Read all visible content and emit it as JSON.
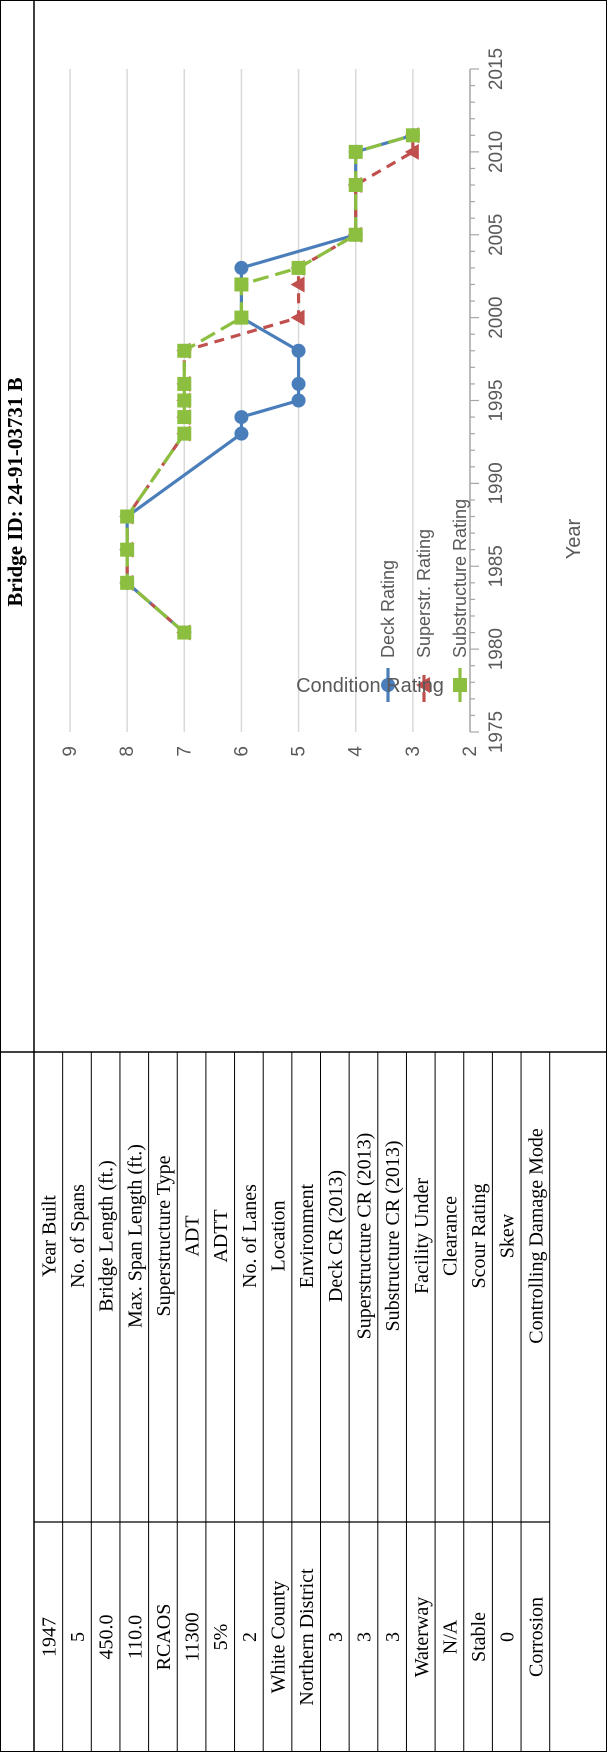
{
  "table": {
    "rows": [
      {
        "label": "Year Built",
        "value": "1947"
      },
      {
        "label": "No. of Spans",
        "value": "5"
      },
      {
        "label": "Bridge Length (ft.)",
        "value": "450.0"
      },
      {
        "label": "Max. Span Length (ft.)",
        "value": "110.0"
      },
      {
        "label": "Superstructure Type",
        "value": "RCAOS"
      },
      {
        "label": "ADT",
        "value": "11300"
      },
      {
        "label": "ADTT",
        "value": "5%"
      },
      {
        "label": "No. of Lanes",
        "value": "2"
      },
      {
        "label": "Location",
        "value": "White County"
      },
      {
        "label": "Environment",
        "value": "Northern District"
      },
      {
        "label": "Deck CR (2013)",
        "value": "3"
      },
      {
        "label": "Superstructure CR (2013)",
        "value": "3"
      },
      {
        "label": "Substructure CR (2013)",
        "value": "3"
      },
      {
        "label": "Facility Under",
        "value": "Waterway"
      },
      {
        "label": "Clearance",
        "value": "N/A"
      },
      {
        "label": "Scour Rating",
        "value": "Stable"
      },
      {
        "label": "Skew",
        "value": "0"
      },
      {
        "label": "Controlling Damage Mode",
        "value": "Corrosion"
      }
    ]
  },
  "chart_data": {
    "type": "line",
    "title": "Bridge ID: 24-91-03731 B",
    "xlabel": "Year",
    "ylabel": "Condition Rating",
    "xlim": [
      1975,
      2015
    ],
    "ylim": [
      2,
      9
    ],
    "x_ticks": [
      1975,
      1980,
      1985,
      1990,
      1995,
      2000,
      2005,
      2010,
      2015
    ],
    "y_ticks": [
      2,
      3,
      4,
      5,
      6,
      7,
      8,
      9
    ],
    "grid": true,
    "legend_position": "lower-left",
    "series": [
      {
        "name": "Deck Rating",
        "color": "#4a7ebb",
        "marker": "circle",
        "line": "solid",
        "points": [
          [
            1981,
            7
          ],
          [
            1984,
            8
          ],
          [
            1986,
            8
          ],
          [
            1988,
            8
          ],
          [
            1993,
            6
          ],
          [
            1994,
            6
          ],
          [
            1995,
            5
          ],
          [
            1996,
            5
          ],
          [
            1998,
            5
          ],
          [
            2000,
            6
          ],
          [
            2002,
            6
          ],
          [
            2003,
            6
          ],
          [
            2005,
            4
          ],
          [
            2008,
            4
          ],
          [
            2010,
            4
          ],
          [
            2011,
            3
          ]
        ]
      },
      {
        "name": "Superstr. Rating",
        "color": "#c0504d",
        "marker": "triangle",
        "line": "dashed",
        "points": [
          [
            1981,
            7
          ],
          [
            1984,
            8
          ],
          [
            1986,
            8
          ],
          [
            1988,
            8
          ],
          [
            1993,
            7
          ],
          [
            1994,
            7
          ],
          [
            1995,
            7
          ],
          [
            1996,
            7
          ],
          [
            1998,
            7
          ],
          [
            2000,
            5
          ],
          [
            2002,
            5
          ],
          [
            2003,
            5
          ],
          [
            2005,
            4
          ],
          [
            2008,
            4
          ],
          [
            2010,
            3
          ],
          [
            2011,
            3
          ]
        ]
      },
      {
        "name": "Substructure Rating",
        "color": "#8cbf3f",
        "marker": "square",
        "line": "long-dash",
        "points": [
          [
            1981,
            7
          ],
          [
            1984,
            8
          ],
          [
            1986,
            8
          ],
          [
            1988,
            8
          ],
          [
            1993,
            7
          ],
          [
            1994,
            7
          ],
          [
            1995,
            7
          ],
          [
            1996,
            7
          ],
          [
            1998,
            7
          ],
          [
            2000,
            6
          ],
          [
            2002,
            6
          ],
          [
            2003,
            5
          ],
          [
            2005,
            4
          ],
          [
            2008,
            4
          ],
          [
            2010,
            4
          ],
          [
            2011,
            3
          ]
        ]
      }
    ]
  }
}
